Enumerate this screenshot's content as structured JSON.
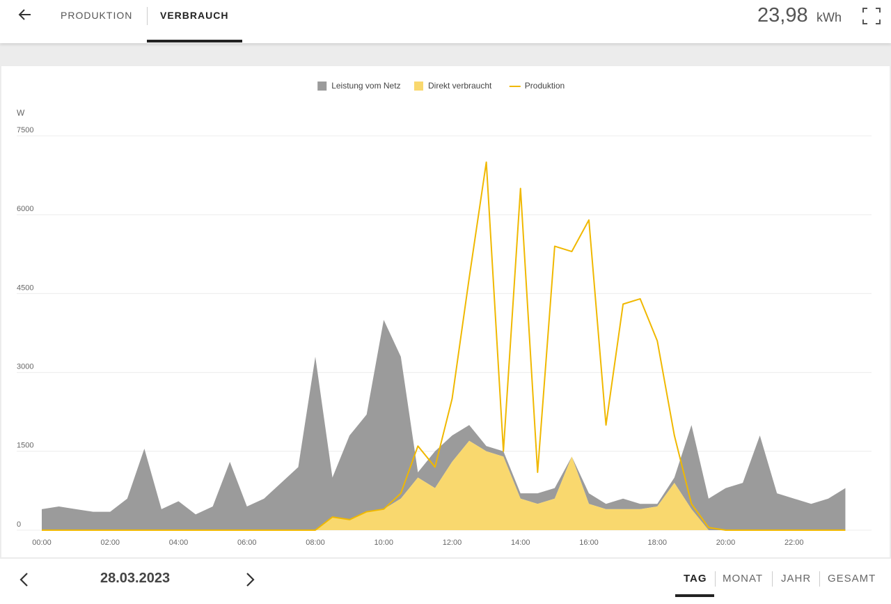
{
  "header": {
    "tabs": [
      "PRODUKTION",
      "VERBRAUCH"
    ],
    "total": "23,98",
    "unit": "kWh"
  },
  "chart_data": {
    "type": "area",
    "y_label": "W",
    "x": [
      "00:00",
      "00:30",
      "01:00",
      "01:30",
      "02:00",
      "02:30",
      "03:00",
      "03:30",
      "04:00",
      "04:30",
      "05:00",
      "05:30",
      "06:00",
      "06:30",
      "07:00",
      "07:30",
      "08:00",
      "08:30",
      "09:00",
      "09:30",
      "10:00",
      "10:30",
      "11:00",
      "11:30",
      "12:00",
      "12:30",
      "13:00",
      "13:30",
      "14:00",
      "14:30",
      "15:00",
      "15:30",
      "16:00",
      "16:30",
      "17:00",
      "17:30",
      "18:00",
      "18:30",
      "19:00",
      "19:30",
      "20:00",
      "20:30",
      "21:00",
      "21:30",
      "22:00",
      "22:30",
      "23:00",
      "23:30"
    ],
    "series": [
      {
        "name": "Leistung vom Netz",
        "kind": "area",
        "color": "#9b9b9b",
        "values": [
          400,
          450,
          400,
          350,
          350,
          600,
          1550,
          400,
          550,
          300,
          450,
          1300,
          450,
          600,
          900,
          1200,
          3300,
          750,
          1600,
          1850,
          3600,
          2700,
          100,
          700,
          500,
          300,
          100,
          100,
          100,
          200,
          200,
          0,
          200,
          100,
          200,
          100,
          50,
          100,
          1600,
          600,
          800,
          900,
          1800,
          700,
          600,
          500,
          600,
          800
        ]
      },
      {
        "name": "Direkt verbraucht",
        "kind": "area",
        "color": "#f9d86e",
        "values": [
          0,
          0,
          0,
          0,
          0,
          0,
          0,
          0,
          0,
          0,
          0,
          0,
          0,
          0,
          0,
          0,
          0,
          250,
          200,
          350,
          400,
          600,
          1000,
          800,
          1300,
          1700,
          1500,
          1400,
          600,
          500,
          600,
          1400,
          500,
          400,
          400,
          400,
          450,
          900,
          400,
          0,
          0,
          0,
          0,
          0,
          0,
          0,
          0,
          0
        ]
      },
      {
        "name": "Produktion",
        "kind": "line",
        "color": "#f0b800",
        "values": [
          0,
          0,
          0,
          0,
          0,
          0,
          0,
          0,
          0,
          0,
          0,
          0,
          0,
          0,
          0,
          0,
          0,
          250,
          200,
          350,
          400,
          700,
          1600,
          1200,
          2500,
          4800,
          7000,
          1500,
          6500,
          1100,
          5400,
          5300,
          5900,
          2000,
          4300,
          4400,
          3600,
          1800,
          500,
          50,
          0,
          0,
          0,
          0,
          0,
          0,
          0,
          0
        ]
      }
    ],
    "xlim": [
      "00:00",
      "24:00"
    ],
    "xticks": [
      "00:00",
      "02:00",
      "04:00",
      "06:00",
      "08:00",
      "10:00",
      "12:00",
      "14:00",
      "16:00",
      "18:00",
      "20:00",
      "22:00"
    ],
    "ylim": [
      0,
      7500
    ],
    "yticks": [
      0,
      1500,
      3000,
      4500,
      6000,
      7500
    ],
    "grid": true,
    "legend": "top"
  },
  "footer": {
    "date": "28.03.2023",
    "periods": [
      "TAG",
      "MONAT",
      "JAHR",
      "GESAMT"
    ]
  }
}
